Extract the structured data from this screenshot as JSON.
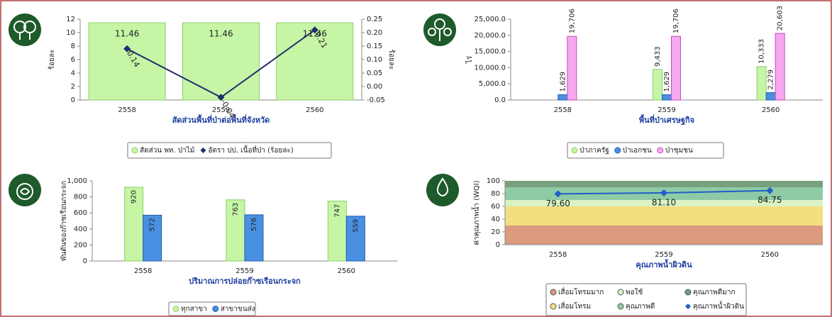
{
  "chart_data": [
    {
      "type": "bar",
      "categories": [
        "2558",
        "2559",
        "2560"
      ],
      "series": [
        {
          "name": "สัดส่วน พท. ป่าไม้",
          "type": "bar",
          "color": "#c6f5a6",
          "values": [
            11.46,
            11.46,
            11.46
          ]
        },
        {
          "name": "อัตรา ปป. เนื้อที่ป่า (ร้อยละ)",
          "type": "line",
          "axis": "y2",
          "color": "#1f2f6b",
          "values": [
            0.14,
            -0.04,
            0.21
          ]
        }
      ],
      "xlabel": "สัดส่วนพื้นที่ป่าต่อพื้นที่จังหวัด",
      "ylabel": "ร้อยละ",
      "y2label": "ร้อยละ",
      "ylim": [
        0,
        12
      ],
      "yticks": [
        0,
        2,
        4,
        6,
        8,
        10,
        12
      ],
      "y2lim": [
        -0.05,
        0.25
      ],
      "y2ticks": [
        -0.05,
        {
          "value": 0,
          "label": "0.00"
        },
        0.05,
        {
          "value": 0.1,
          "label": "0.10"
        },
        0.15,
        {
          "value": 0.2,
          "label": "0.20"
        },
        0.25
      ],
      "grid": false
    },
    {
      "type": "bar",
      "categories": [
        "2558",
        "2559",
        "2560"
      ],
      "series": [
        {
          "name": "ป่าภาครัฐ",
          "color": "#c6f5a6",
          "values": [
            null,
            9433,
            10333
          ],
          "value_labels": [
            null,
            "9,433",
            "10,333"
          ]
        },
        {
          "name": "ป่าเอกชน",
          "color": "#4a90e2",
          "values": [
            1629,
            1629,
            2279
          ],
          "value_labels": [
            "1,629",
            "1,629",
            "2,279"
          ]
        },
        {
          "name": "ป่าชุมชน",
          "color": "#f6a8f0",
          "values": [
            19706,
            19706,
            20603
          ],
          "value_labels": [
            "19,706",
            "19,706",
            "20,603"
          ]
        }
      ],
      "xlabel": "พื้นที่ป่าเศรษฐกิจ",
      "ylabel": "ไร่",
      "ylim": [
        0,
        25000
      ],
      "yticks": [
        {
          "value": 0,
          "label": "0.0"
        },
        {
          "value": 5000,
          "label": "5,000.0"
        },
        {
          "value": 10000,
          "label": "10,000.0"
        },
        {
          "value": 15000,
          "label": "15,000.0"
        },
        {
          "value": 20000,
          "label": "20,000.0"
        },
        {
          "value": 25000,
          "label": "25,000.0"
        }
      ],
      "grid": false
    },
    {
      "type": "bar",
      "categories": [
        "2558",
        "2559",
        "2560"
      ],
      "series": [
        {
          "name": "ทุกสาขา",
          "color": "#c6f5a6",
          "values": [
            920,
            763,
            747
          ]
        },
        {
          "name": "สาขาขนส่ง",
          "color": "#4a90e2",
          "values": [
            572,
            576,
            559
          ]
        }
      ],
      "xlabel": "ปริมาณการปล่อยก๊าซเรือนกระจก",
      "ylabel": "พันตันของก๊าซเรือนกระจก",
      "ylim": [
        0,
        1000
      ],
      "yticks": [
        0,
        200,
        400,
        600,
        800,
        {
          "value": 1000,
          "label": "1,000"
        }
      ],
      "grid": false
    },
    {
      "type": "line",
      "categories": [
        "2558",
        "2559",
        "2560"
      ],
      "bands": [
        {
          "name": "เสื่อมโทรมมาก",
          "from": 0,
          "to": 30,
          "color": "#dc9a7e"
        },
        {
          "name": "เสื่อมโทรม",
          "from": 30,
          "to": 60,
          "color": "#f3df80"
        },
        {
          "name": "พอใช้",
          "from": 60,
          "to": 70,
          "color": "#daf2c4"
        },
        {
          "name": "คุณภาพดี",
          "from": 70,
          "to": 90,
          "color": "#8fcaa6"
        },
        {
          "name": "คุณภาพดีมาก",
          "from": 90,
          "to": 100,
          "color": "#76a07e"
        }
      ],
      "series": [
        {
          "name": "คุณภาพน้ำผิวดิน",
          "color": "#1f5fc8",
          "values": [
            79.6,
            81.1,
            84.75
          ],
          "value_labels": [
            "79.60",
            "81.10",
            "84.75"
          ]
        }
      ],
      "xlabel": "คุณภาพน้ำผิวดิน",
      "ylabel": "ค่าคุณภาพน้ำ (WQI)",
      "ylim": [
        0,
        100
      ],
      "yticks": [
        0,
        20,
        40,
        60,
        80,
        100
      ],
      "grid": false
    }
  ]
}
